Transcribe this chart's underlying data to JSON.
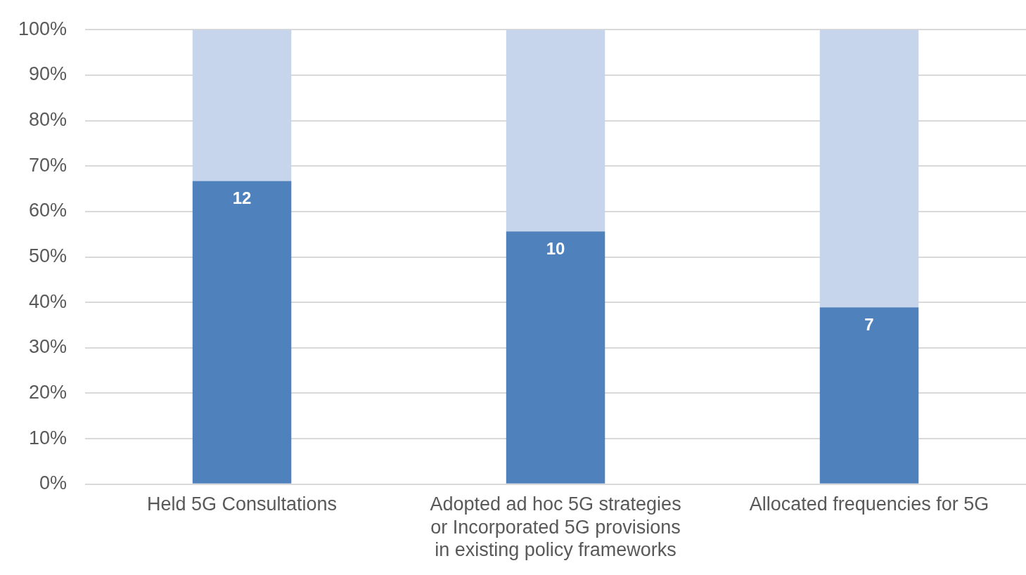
{
  "chart_data": {
    "type": "bar",
    "stacked": true,
    "categories": [
      "Held 5G Consultations",
      "Adopted ad hoc 5G strategies or Incorporated 5G provisions in existing policy frameworks",
      "Allocated frequencies for 5G"
    ],
    "series": [
      {
        "color": "#4f81bd",
        "values": [
          66.7,
          55.6,
          38.9
        ]
      },
      {
        "color": "#c6d5ec",
        "values": [
          33.3,
          44.4,
          61.1
        ]
      }
    ],
    "ylim": [
      0,
      100
    ],
    "yticks": [
      {
        "value": 0,
        "label": "0%"
      },
      {
        "value": 10,
        "label": "10%"
      },
      {
        "value": 20,
        "label": "20%"
      },
      {
        "value": 30,
        "label": "30%"
      },
      {
        "value": 40,
        "label": "40%"
      },
      {
        "value": 50,
        "label": "50%"
      },
      {
        "value": 60,
        "label": "60%"
      },
      {
        "value": 70,
        "label": "70%"
      },
      {
        "value": 80,
        "label": "80%"
      },
      {
        "value": 90,
        "label": "90%"
      },
      {
        "value": 100,
        "label": "100%"
      }
    ],
    "annotations": [
      {
        "text": "12",
        "x": "Held 5G Consultations",
        "y": 66.7
      },
      {
        "text": "10",
        "x": "Adopted ad hoc 5G strategies or Incorporated 5G provisions in existing policy frameworks",
        "y": 55.6
      },
      {
        "text": "7",
        "x": "Allocated frequencies for 5G",
        "y": 38.9
      }
    ],
    "grid": "y",
    "legend": false
  }
}
